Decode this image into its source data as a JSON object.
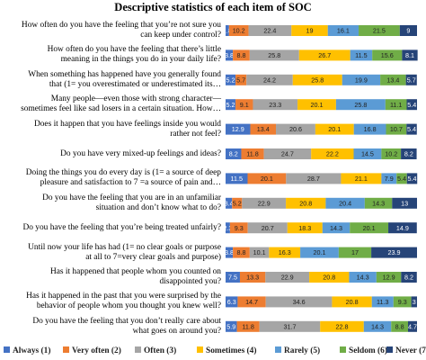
{
  "chart_data": {
    "type": "bar",
    "orientation": "horizontal",
    "stacked": true,
    "title": "Descriptive statistics of each item of SOC",
    "categories": [
      "How often do you have the feeling that you’re not sure you\ncan keep under control?",
      "How often do you have the feeling that there’s little\nmeaning in the things you do in your daily life?",
      "When something has happened have you generally found\nthat (1= you overestimated or underestimated its…",
      "Many people—even those with strong character—\nsometimes feel like sad losers in a certain situation. How…",
      "Does it happen that you have feelings inside you would\nrather not feel?",
      "Do you have very mixed-up feelings and ideas?",
      "Doing the things you do every day is (1= a source of deep\npleasure and satisfaction to 7 =a source of pain and…",
      "Do you have the feeling that you are in an unfamiliar\nsituation and don’t know what to do?",
      "Do you have the feeling that you’re being treated unfairly?",
      "Until now your life has had (1= no clear goals or purpose\nat all to 7=very clear goals and purpose)",
      "Has it happened that people whom you counted on\ndisappointed you?",
      "Has it happened in the past that you were surprised by the\nbehavior of people whom you thought you knew well?",
      "Do you have the feeling that you don’t really care about\nwhat goes on around you?"
    ],
    "series": [
      {
        "name": "Always (1)",
        "color": "#4472c4",
        "values": [
          1.8,
          3.8,
          5.2,
          5.2,
          12.9,
          8.2,
          11.5,
          3.4,
          2.3,
          3.8,
          7.5,
          6.3,
          5.9
        ]
      },
      {
        "name": "Very often (2)",
        "color": "#ed7d31",
        "values": [
          10.2,
          8.8,
          5.7,
          9.1,
          13.4,
          11.8,
          20.1,
          5.2,
          9.3,
          8.8,
          13.3,
          14.7,
          11.8
        ]
      },
      {
        "name": "Often (3)",
        "color": "#a5a5a5",
        "values": [
          22.4,
          25.8,
          24.2,
          23.3,
          20.6,
          24.7,
          28.7,
          22.9,
          20.7,
          10.1,
          22.9,
          34.6,
          31.7
        ]
      },
      {
        "name": "Sometimes (4)",
        "color": "#ffc000",
        "values": [
          19,
          26.7,
          25.8,
          20.1,
          20.1,
          22.2,
          21.1,
          20.8,
          18.3,
          16.3,
          20.8,
          20.8,
          22.8
        ]
      },
      {
        "name": "Rarely (5)",
        "color": "#5b9bd5",
        "values": [
          16.1,
          11.5,
          19.9,
          25.8,
          16.8,
          14.5,
          7.9,
          20.4,
          14.3,
          20.1,
          14.3,
          11.3,
          14.3
        ]
      },
      {
        "name": "Seldom (6)",
        "color": "#70ad47",
        "values": [
          21.5,
          15.6,
          13.4,
          11.1,
          10.7,
          10.2,
          5.4,
          14.3,
          20.1,
          17,
          12.9,
          9.3,
          8.8
        ]
      },
      {
        "name": "Never (7)",
        "color": "#264478",
        "values": [
          9,
          8.1,
          5.7,
          5.4,
          5.4,
          8.2,
          5.4,
          13,
          14.9,
          23.9,
          8.2,
          3.0,
          4.7
        ]
      }
    ],
    "xlim": [
      0,
      100
    ],
    "legend_position": "bottom"
  }
}
